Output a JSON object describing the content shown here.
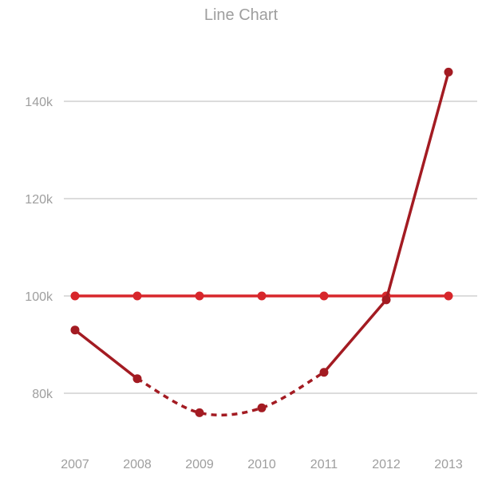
{
  "chart_data": {
    "type": "line",
    "title": "Line Chart",
    "xlabel": "",
    "ylabel": "",
    "categories": [
      "2007",
      "2008",
      "2009",
      "2010",
      "2011",
      "2012",
      "2013"
    ],
    "ylim": [
      70000,
      150000
    ],
    "yticks": [
      80000,
      100000,
      120000,
      140000
    ],
    "ytick_labels": [
      "80k",
      "100k",
      "120k",
      "140k"
    ],
    "grid": true,
    "legend": "none",
    "series": [
      {
        "color": "#d7262b",
        "line_style": "solid",
        "values": [
          100000,
          100000,
          100000,
          100000,
          100000,
          100000,
          100000
        ]
      },
      {
        "color": "#a31b22",
        "line_style": "solid with dashed segment 2008–2011",
        "dashed_segments": [
          [
            1,
            4
          ]
        ],
        "values": [
          93000,
          83000,
          76000,
          77000,
          84300,
          99200,
          146000
        ]
      }
    ],
    "colors": {
      "grid": "#c8c8c8",
      "text": "#9e9e9e"
    }
  }
}
